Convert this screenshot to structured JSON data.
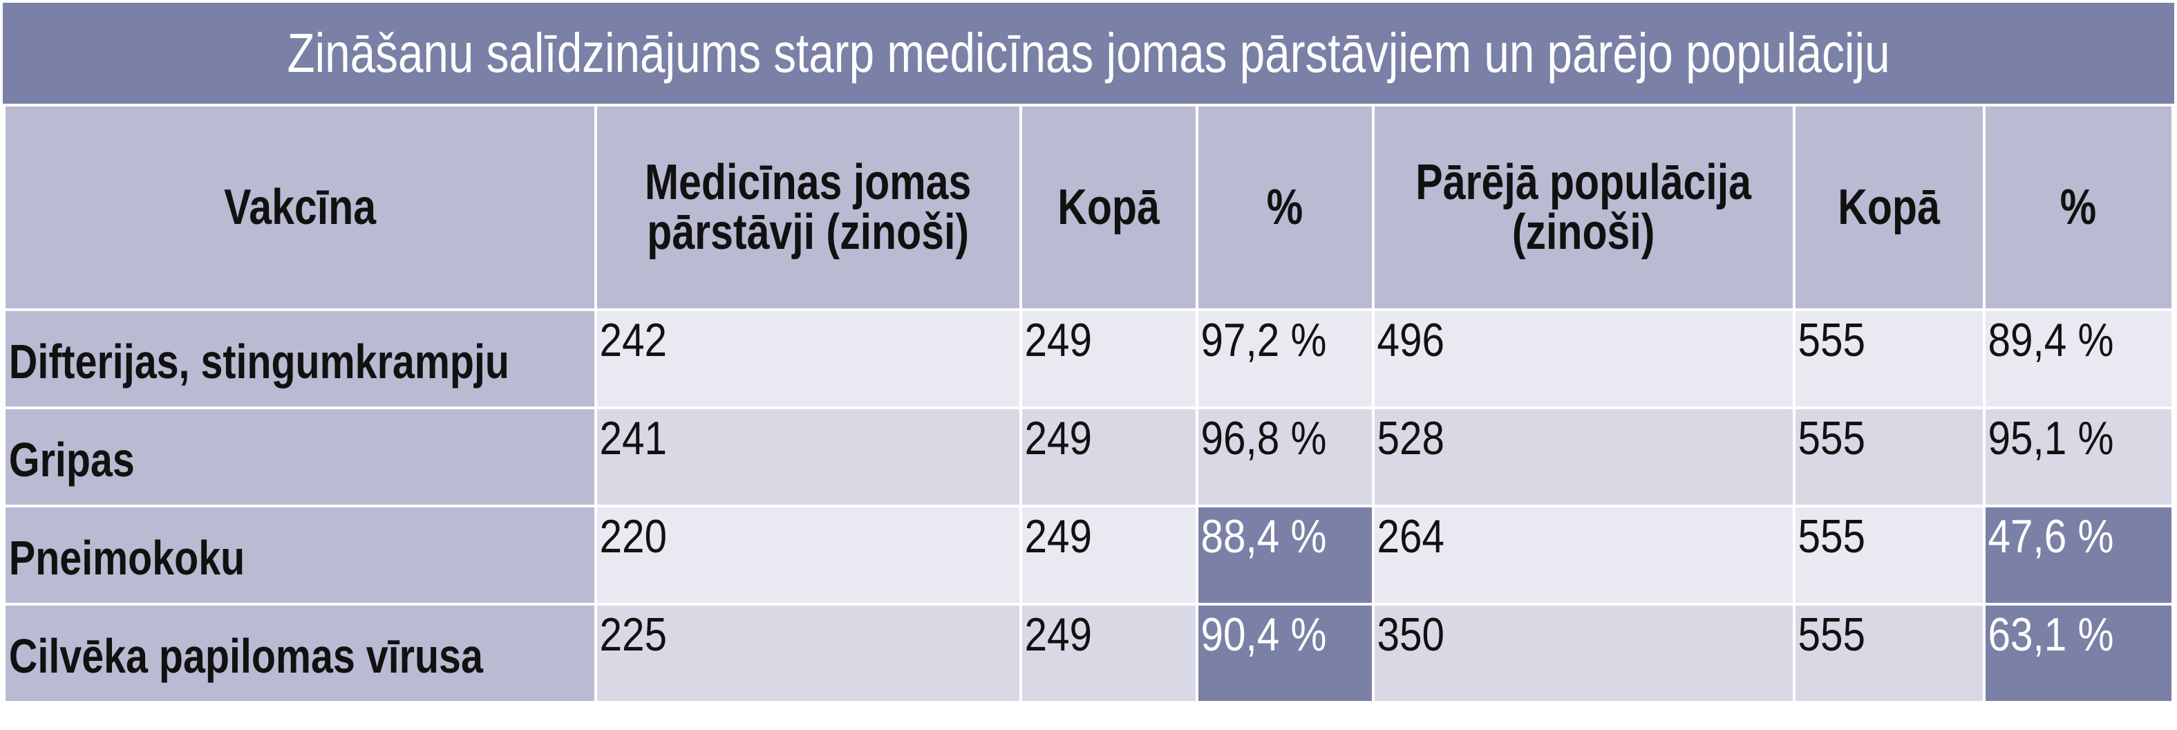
{
  "title": "Zināšanu salīdzinājums starp medicīnas jomas pārstāvjiem un pārējo populāciju",
  "table": {
    "headers": [
      [
        "Vakcīna"
      ],
      [
        "Medicīnas jomas",
        "pārstāvji (zinoši)"
      ],
      [
        "Kopā"
      ],
      [
        "%"
      ],
      [
        "Pārējā populācija",
        "(zinoši)"
      ],
      [
        "Kopā"
      ],
      [
        "%"
      ]
    ],
    "rows": [
      {
        "vaccine": "Difterijas, stingumkrampju",
        "med_knowing": "242",
        "med_total": "249",
        "med_pct": "97,2 %",
        "pop_knowing": "496",
        "pop_total": "555",
        "pop_pct": "89,4 %"
      },
      {
        "vaccine": "Gripas",
        "med_knowing": "241",
        "med_total": "249",
        "med_pct": "96,8 %",
        "pop_knowing": "528",
        "pop_total": "555",
        "pop_pct": "95,1 %"
      },
      {
        "vaccine": "Pneimokoku",
        "med_knowing": "220",
        "med_total": "249",
        "med_pct": "88,4 %",
        "pop_knowing": "264",
        "pop_total": "555",
        "pop_pct": "47,6 %"
      },
      {
        "vaccine": "Cilvēka papilomas vīrusa",
        "med_knowing": "225",
        "med_total": "249",
        "med_pct": "90,4 %",
        "pop_knowing": "350",
        "pop_total": "555",
        "pop_pct": "63,1 %"
      }
    ]
  },
  "colors": {
    "title_bg": "#7a80a6",
    "header_bg": "#b8bbd1",
    "row_light": "#e9e9f1",
    "row_mid": "#d9d9e6",
    "highlight": "#7a80a6"
  }
}
